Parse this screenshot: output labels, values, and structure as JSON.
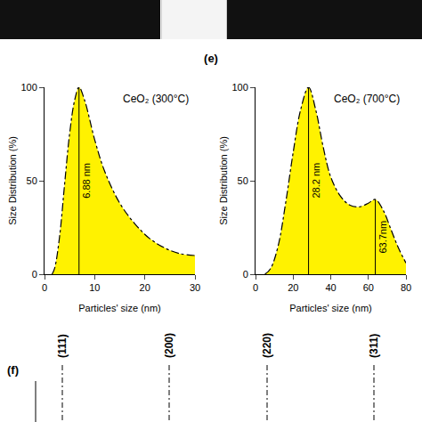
{
  "chart_data": [
    {
      "type": "area",
      "panel": "(e)",
      "title": "CeO₂ (300°C)",
      "x_label": "Particles' size (nm)",
      "y_label": "Size Distribution (%)",
      "x": [
        1.5,
        2,
        3,
        4,
        5,
        6,
        6.88,
        8,
        10,
        12,
        15,
        18,
        21,
        24,
        27,
        30
      ],
      "values": [
        0,
        3,
        20,
        48,
        75,
        93,
        100,
        93,
        72,
        55,
        38,
        27,
        19,
        14,
        11,
        10
      ],
      "color": "#fff200",
      "line_style": "dashdot",
      "peaks": [
        {
          "x": 6.88,
          "y": 100,
          "label": "6.88 nm"
        }
      ],
      "xlim": [
        0,
        30
      ],
      "xticks": [
        0,
        10,
        20,
        30
      ],
      "ylim": [
        0,
        100
      ],
      "yticks": [
        0,
        50,
        100
      ],
      "grid": false
    },
    {
      "type": "area",
      "title": "CeO₂ (700°C)",
      "x_label": "Particles' size (nm)",
      "y_label": "Size Distribution (%)",
      "x": [
        5,
        8,
        12,
        16,
        20,
        24,
        28.2,
        32,
        36,
        40,
        45,
        50,
        55,
        60,
        63.7,
        68,
        72,
        76,
        80
      ],
      "values": [
        0,
        3,
        15,
        38,
        65,
        88,
        100,
        88,
        68,
        52,
        42,
        37,
        36,
        38,
        40,
        34,
        24,
        14,
        6
      ],
      "color": "#fff200",
      "line_style": "dashdot",
      "peaks": [
        {
          "x": 28.2,
          "y": 100,
          "label": "28.2 nm"
        },
        {
          "x": 63.7,
          "y": 40,
          "label": "63.7nm"
        }
      ],
      "xlim": [
        0,
        80
      ],
      "xticks": [
        0,
        20,
        40,
        60,
        80
      ],
      "ylim": [
        0,
        100
      ],
      "yticks": [
        0,
        50,
        100
      ],
      "grid": false
    }
  ],
  "panel_f": {
    "label": "(f)",
    "peak_labels": [
      "(111)",
      "(200)",
      "(220)",
      "(311)"
    ]
  }
}
